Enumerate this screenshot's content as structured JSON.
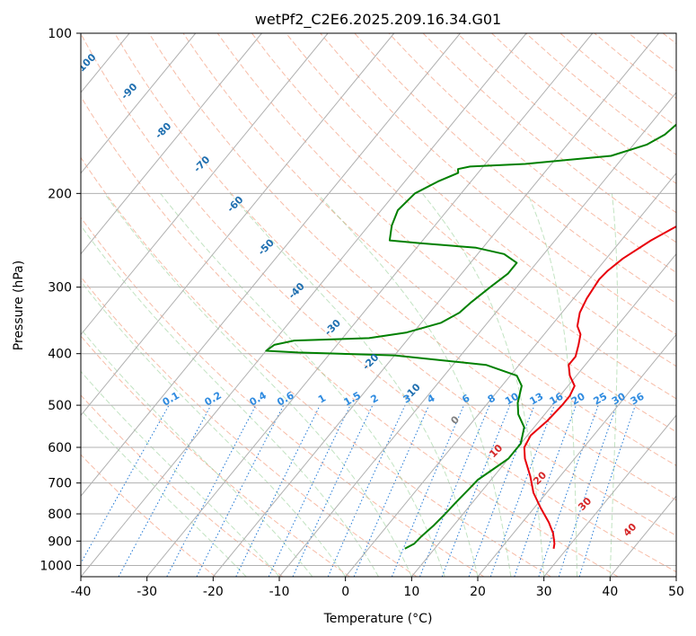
{
  "chart_data": {
    "type": "line",
    "title": "wetPf2_C2E6.2025.209.16.34.G01",
    "xlabel": "Temperature (°C)",
    "ylabel": "Pressure (hPa)",
    "xlim": [
      -40,
      50
    ],
    "ylim": [
      1050,
      100
    ],
    "y_scale": "log",
    "skew": true,
    "grid": true,
    "x_ticks": [
      "-40",
      "-30",
      "-20",
      "-10",
      "0",
      "10",
      "20",
      "30",
      "40",
      "50"
    ],
    "y_ticks": [
      "100",
      "200",
      "300",
      "400",
      "500",
      "600",
      "700",
      "800",
      "900",
      "1000"
    ],
    "series": [
      {
        "role": "temperature",
        "color": "#e8000b",
        "points": [
          [
            28.0,
            930
          ],
          [
            27.5,
            910
          ],
          [
            26.0,
            870
          ],
          [
            24.0,
            830
          ],
          [
            21.0,
            780
          ],
          [
            18.0,
            730
          ],
          [
            15.5,
            680
          ],
          [
            12.5,
            630
          ],
          [
            11.0,
            600
          ],
          [
            10.5,
            570
          ],
          [
            11.2,
            535
          ],
          [
            11.5,
            500
          ],
          [
            11.5,
            480
          ],
          [
            11.0,
            460
          ],
          [
            9.0,
            440
          ],
          [
            7.5,
            420
          ],
          [
            7.5,
            405
          ],
          [
            6.5,
            385
          ],
          [
            5.5,
            368
          ],
          [
            4.0,
            355
          ],
          [
            2.7,
            335
          ],
          [
            2.0,
            315
          ],
          [
            1.7,
            300
          ],
          [
            1.5,
            290
          ],
          [
            1.7,
            280
          ],
          [
            2.5,
            265
          ],
          [
            4.5,
            245
          ],
          [
            7.0,
            228
          ],
          [
            8.5,
            215
          ],
          [
            9.5,
            200
          ],
          [
            10.0,
            190
          ],
          [
            9.5,
            180
          ],
          [
            8.0,
            170
          ],
          [
            7.0,
            160
          ],
          [
            6.5,
            150
          ],
          [
            6.5,
            140
          ],
          [
            7.0,
            130
          ],
          [
            7.0,
            120
          ],
          [
            6.0,
            112
          ],
          [
            6.0,
            105
          ],
          [
            6.5,
            100
          ]
        ]
      },
      {
        "role": "dewpoint",
        "color": "#008000",
        "points": [
          [
            5.5,
            930
          ],
          [
            6.3,
            910
          ],
          [
            6.5,
            880
          ],
          [
            7.0,
            840
          ],
          [
            7.3,
            800
          ],
          [
            7.5,
            760
          ],
          [
            7.8,
            720
          ],
          [
            8.0,
            690
          ],
          [
            9.0,
            660
          ],
          [
            10.0,
            630
          ],
          [
            10.0,
            590
          ],
          [
            8.5,
            550
          ],
          [
            6.0,
            520
          ],
          [
            4.5,
            495
          ],
          [
            3.0,
            460
          ],
          [
            1.0,
            440
          ],
          [
            -5.0,
            420
          ],
          [
            -20.0,
            403
          ],
          [
            -35.0,
            398
          ],
          [
            -40.0,
            395
          ],
          [
            -39.5,
            385
          ],
          [
            -37.0,
            378
          ],
          [
            -26.0,
            374
          ],
          [
            -21.0,
            365
          ],
          [
            -17.0,
            350
          ],
          [
            -15.5,
            335
          ],
          [
            -15.0,
            320
          ],
          [
            -14.0,
            300
          ],
          [
            -13.0,
            283
          ],
          [
            -13.0,
            270
          ],
          [
            -16.0,
            260
          ],
          [
            -21.0,
            253
          ],
          [
            -30.0,
            248
          ],
          [
            -35.0,
            245
          ],
          [
            -36.5,
            230
          ],
          [
            -37.5,
            215
          ],
          [
            -37.0,
            200
          ],
          [
            -35.0,
            190
          ],
          [
            -33.0,
            183
          ],
          [
            -33.5,
            180
          ],
          [
            -32.0,
            178
          ],
          [
            -24.0,
            176
          ],
          [
            -12.0,
            170
          ],
          [
            -8.0,
            162
          ],
          [
            -6.5,
            155
          ],
          [
            -6.0,
            148
          ],
          [
            -5.0,
            140
          ],
          [
            -5.0,
            130
          ],
          [
            -4.0,
            120
          ],
          [
            -3.0,
            115
          ],
          [
            -1.5,
            110
          ],
          [
            -1.0,
            103
          ],
          [
            -0.5,
            100
          ]
        ]
      }
    ],
    "dry_adiabat_labels": [
      "-100",
      "-90",
      "-80",
      "-70",
      "-60",
      "-50",
      "-40",
      "-30",
      "-20",
      "-10",
      "0",
      "10",
      "20",
      "30",
      "40"
    ],
    "moist_adiabat_labels": [],
    "mixing_ratio_labels": [
      "0.1",
      "0.2",
      "0.4",
      "0.6",
      "1",
      "1.5",
      "2",
      "3",
      "4",
      "6",
      "8",
      "10",
      "13",
      "16",
      "20",
      "25",
      "30",
      "36"
    ]
  }
}
